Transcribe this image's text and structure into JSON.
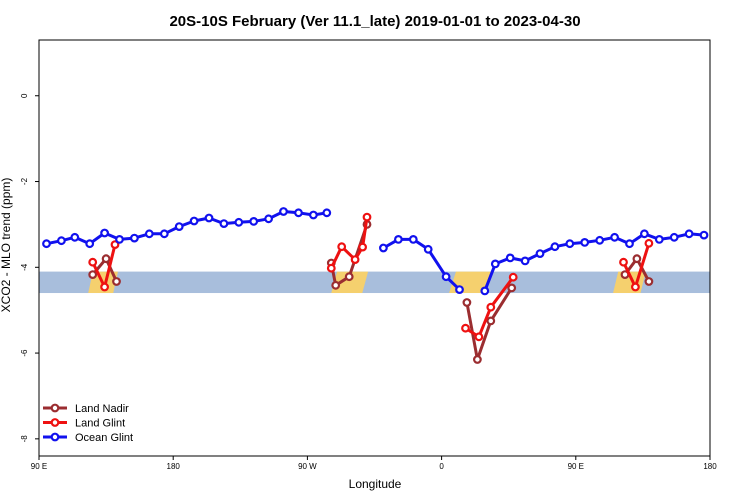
{
  "chart_data": {
    "type": "line",
    "title": "20S-10S February (Ver 11.1_late)   2019-01-01 to 2023-04-30",
    "xlabel": "Longitude",
    "ylabel": "XCO2 - MLO trend (ppm)",
    "xlim": [
      -180,
      270
    ],
    "ylim": [
      -8.4,
      1.3
    ],
    "x_ticks": [
      {
        "value": -180,
        "label": "90 E"
      },
      {
        "value": -90,
        "label": "180"
      },
      {
        "value": 0,
        "label": "90 W"
      },
      {
        "value": 90,
        "label": "0"
      },
      {
        "value": 180,
        "label": "90 E"
      },
      {
        "value": 270,
        "label": "180"
      }
    ],
    "y_ticks": [
      {
        "value": 0,
        "label": "0"
      },
      {
        "value": -2,
        "label": "-2"
      },
      {
        "value": -4,
        "label": "-4"
      },
      {
        "value": -6,
        "label": "-6"
      },
      {
        "value": -8,
        "label": "-8"
      }
    ],
    "band": {
      "y_min": -4.6,
      "y_max": -4.1,
      "color": "#a8bedc",
      "land_color": "#f5d06e"
    },
    "land_segments": [
      {
        "x_start": -147,
        "x_end": -126
      },
      {
        "x_start": 16,
        "x_end": 42
      },
      {
        "x_start": 95,
        "x_end": 126
      },
      {
        "x_start": 205,
        "x_end": 228
      }
    ],
    "legend_position": "bottom-left",
    "series": [
      {
        "name": "Land Nadir",
        "color": "#9b2d30",
        "segments": [
          [
            [
              -144,
              -4.17
            ],
            [
              -135,
              -3.8
            ],
            [
              -128,
              -4.33
            ]
          ],
          [
            [
              16,
              -3.9
            ],
            [
              19,
              -4.42
            ],
            [
              28,
              -4.22
            ],
            [
              40,
              -3.0
            ]
          ],
          [
            [
              107,
              -4.82
            ],
            [
              114,
              -6.15
            ],
            [
              123,
              -5.25
            ],
            [
              137,
              -4.48
            ]
          ],
          [
            [
              213,
              -4.17
            ],
            [
              221,
              -3.8
            ],
            [
              229,
              -4.33
            ]
          ]
        ]
      },
      {
        "name": "Land Glint",
        "color": "#ee1111",
        "segments": [
          [
            [
              -144,
              -3.88
            ],
            [
              -136,
              -4.46
            ],
            [
              -129,
              -3.47
            ]
          ],
          [
            [
              16,
              -4.02
            ],
            [
              23,
              -3.52
            ],
            [
              32,
              -3.82
            ],
            [
              37,
              -3.53
            ],
            [
              40,
              -2.83
            ]
          ],
          [
            [
              106,
              -5.42
            ],
            [
              115,
              -5.62
            ],
            [
              123,
              -4.93
            ],
            [
              138,
              -4.23
            ]
          ],
          [
            [
              212,
              -3.88
            ],
            [
              220,
              -4.46
            ],
            [
              229,
              -3.44
            ]
          ]
        ]
      },
      {
        "name": "Ocean Glint",
        "color": "#1111ee",
        "segments": [
          [
            [
              -175,
              -3.45
            ],
            [
              -165,
              -3.38
            ],
            [
              -156,
              -3.3
            ],
            [
              -146,
              -3.45
            ],
            [
              -136,
              -3.2
            ],
            [
              -126,
              -3.35
            ],
            [
              -116,
              -3.32
            ],
            [
              -106,
              -3.22
            ],
            [
              -96,
              -3.22
            ],
            [
              -86,
              -3.05
            ],
            [
              -76,
              -2.92
            ],
            [
              -66,
              -2.85
            ],
            [
              -56,
              -2.98
            ],
            [
              -46,
              -2.95
            ],
            [
              -36,
              -2.93
            ],
            [
              -26,
              -2.87
            ],
            [
              -16,
              -2.7
            ],
            [
              -6,
              -2.73
            ],
            [
              4,
              -2.78
            ],
            [
              13,
              -2.73
            ]
          ],
          [
            [
              51,
              -3.55
            ],
            [
              61,
              -3.35
            ],
            [
              71,
              -3.35
            ],
            [
              81,
              -3.58
            ],
            [
              93,
              -4.22
            ],
            [
              102,
              -4.52
            ]
          ],
          [
            [
              119,
              -4.55
            ],
            [
              126,
              -3.92
            ],
            [
              136,
              -3.78
            ],
            [
              146,
              -3.85
            ],
            [
              156,
              -3.68
            ],
            [
              166,
              -3.52
            ],
            [
              176,
              -3.45
            ],
            [
              186,
              -3.42
            ],
            [
              196,
              -3.37
            ],
            [
              206,
              -3.3
            ],
            [
              216,
              -3.45
            ],
            [
              226,
              -3.22
            ],
            [
              236,
              -3.35
            ],
            [
              246,
              -3.3
            ],
            [
              256,
              -3.22
            ],
            [
              266,
              -3.25
            ]
          ]
        ]
      }
    ]
  }
}
